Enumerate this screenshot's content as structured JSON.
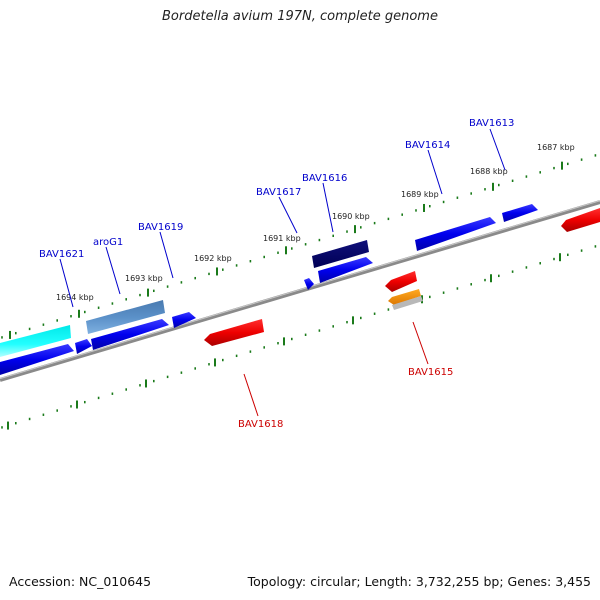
{
  "title": "Bordetella avium 197N, complete genome",
  "footer": {
    "accession": "Accession: NC_010645",
    "topology": "Topology: circular; Length: 3,732,255 bp; Genes: 3,455"
  },
  "colors": {
    "backbone": "#888888",
    "ticks": "#1a7a1a",
    "forward_label": "#0000cc",
    "reverse_label": "#cc0000"
  },
  "kbp_ticks": [
    "1687 kbp",
    "1688 kbp",
    "1689 kbp",
    "1690 kbp",
    "1691 kbp",
    "1692 kbp",
    "1693 kbp",
    "1694 kbp"
  ],
  "forward_gene_labels": [
    "BAV1613",
    "BAV1614",
    "BAV1616",
    "BAV1617",
    "BAV1619",
    "aroG1",
    "BAV1621"
  ],
  "reverse_gene_labels": [
    "BAV1615",
    "BAV1618"
  ]
}
